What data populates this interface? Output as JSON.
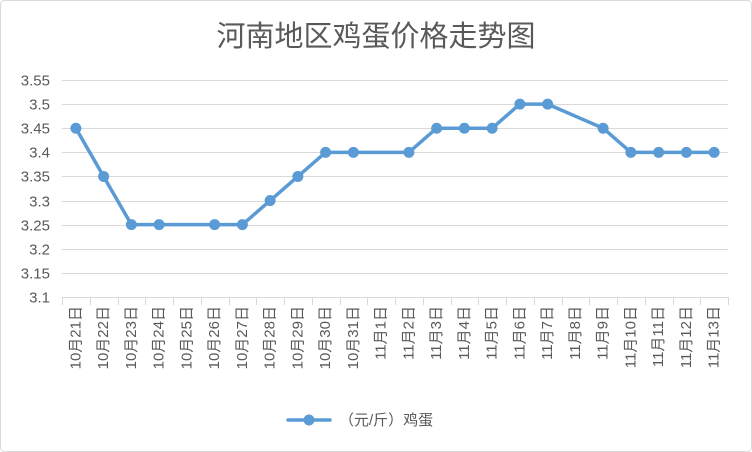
{
  "chart_data": {
    "type": "line",
    "title": "河南地区鸡蛋价格走势图",
    "categories": [
      "10月21日",
      "10月22日",
      "10月23日",
      "10月24日",
      "10月25日",
      "10月26日",
      "10月27日",
      "10月28日",
      "10月29日",
      "10月30日",
      "10月31日",
      "11月1日",
      "11月2日",
      "11月3日",
      "11月4日",
      "11月5日",
      "11月6日",
      "11月7日",
      "11月8日",
      "11月9日",
      "11月10日",
      "11月11日",
      "11月12日",
      "11月13日"
    ],
    "series": [
      {
        "name": "（元/斤）鸡蛋",
        "color": "#5B9BD5",
        "values": [
          3.45,
          3.35,
          3.25,
          3.25,
          null,
          3.25,
          3.25,
          3.3,
          3.35,
          3.4,
          3.4,
          null,
          3.4,
          3.45,
          3.45,
          3.45,
          3.5,
          3.5,
          null,
          3.45,
          3.4,
          3.4,
          3.4,
          3.4
        ]
      }
    ],
    "ylim": [
      3.1,
      3.55
    ],
    "yticks": [
      3.1,
      3.15,
      3.2,
      3.25,
      3.3,
      3.35,
      3.4,
      3.45,
      3.5,
      3.55
    ],
    "grid": true,
    "legend": "bottom",
    "colors": {
      "text": "#595959",
      "grid": "#D9D9D9",
      "frame": "#D9D9D9"
    }
  }
}
